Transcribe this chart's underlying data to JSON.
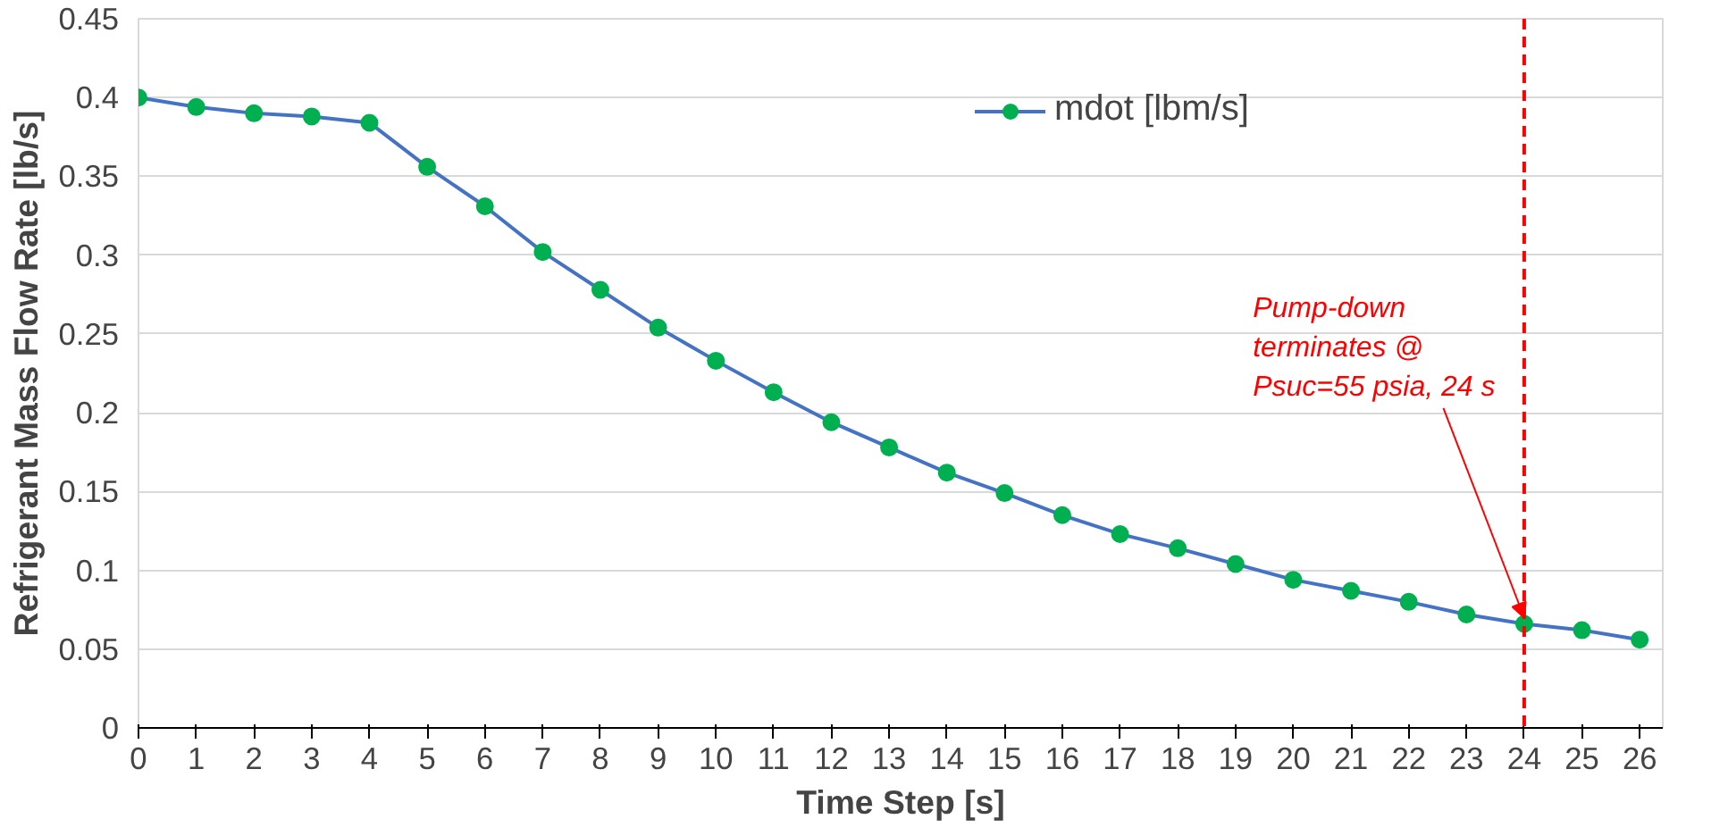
{
  "chart_data": {
    "type": "line",
    "xlabel": "Time Step [s]",
    "ylabel": "Refrigerant Mass Flow Rate [lb/s]",
    "x": [
      0,
      1,
      2,
      3,
      4,
      5,
      6,
      7,
      8,
      9,
      10,
      11,
      12,
      13,
      14,
      15,
      16,
      17,
      18,
      19,
      20,
      21,
      22,
      23,
      24,
      25,
      26
    ],
    "series": [
      {
        "name": "mdot [lbm/s]",
        "color": "#4472c4",
        "values": [
          0.4,
          0.394,
          0.39,
          0.388,
          0.384,
          0.356,
          0.331,
          0.302,
          0.278,
          0.254,
          0.233,
          0.213,
          0.194,
          0.178,
          0.162,
          0.149,
          0.135,
          0.123,
          0.114,
          0.104,
          0.094,
          0.087,
          0.08,
          0.072,
          0.066,
          0.062,
          0.056
        ]
      }
    ],
    "marker": "circle",
    "grid": "y",
    "legend": "top right",
    "xlim": [
      0,
      26.4
    ],
    "xticks": [
      0,
      1,
      2,
      3,
      4,
      5,
      6,
      7,
      8,
      9,
      10,
      11,
      12,
      13,
      14,
      15,
      16,
      17,
      18,
      19,
      20,
      21,
      22,
      23,
      24,
      25,
      26
    ],
    "ylim": [
      0,
      0.45
    ],
    "yticks": [
      0,
      0.05,
      0.1,
      0.15,
      0.2,
      0.25,
      0.3,
      0.35,
      0.4,
      0.45
    ],
    "ref_lines": [
      {
        "axis": "x",
        "value": 24,
        "color": "#ff0000",
        "line_style": "dashed"
      }
    ],
    "annotations": [
      {
        "text": "Pump-down\nterminates @\nPsuc=55 psia, 24 s",
        "x": 24,
        "y": 0.066
      }
    ]
  }
}
